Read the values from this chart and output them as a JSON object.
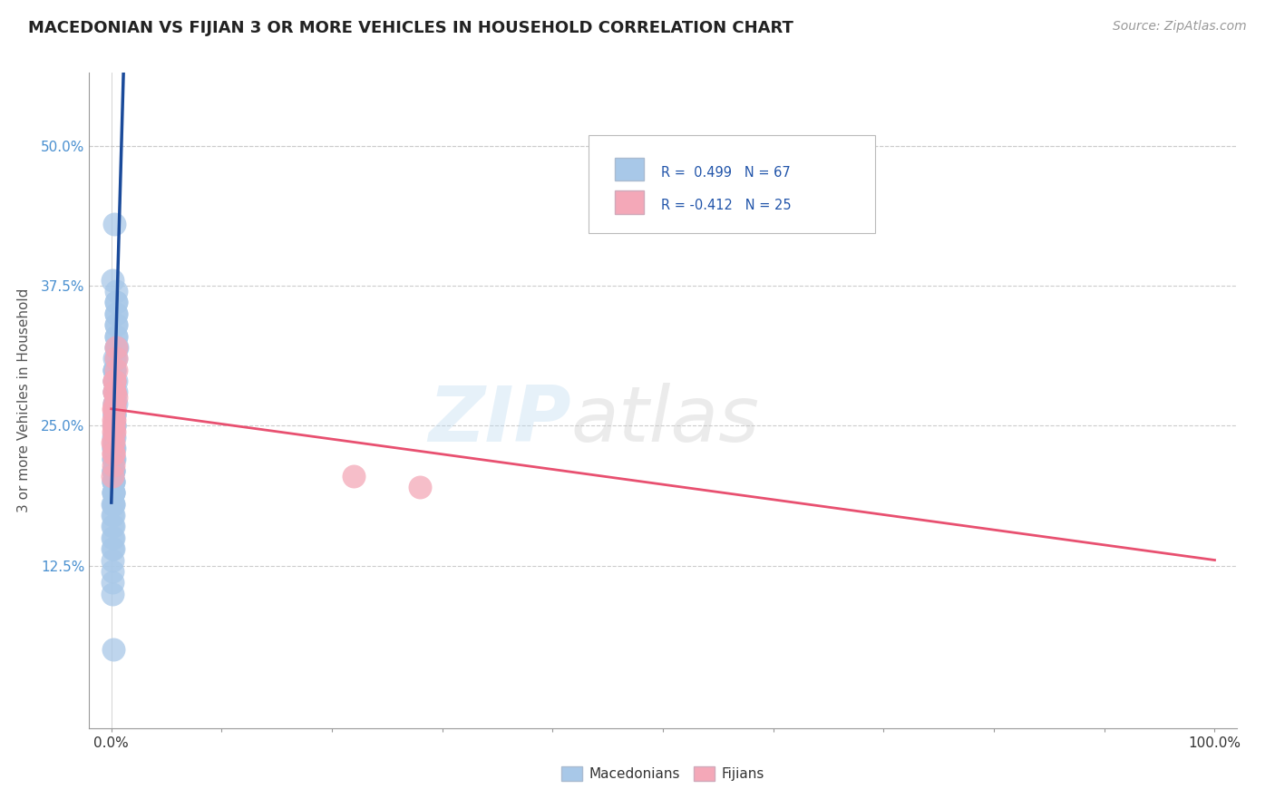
{
  "title": "MACEDONIAN VS FIJIAN 3 OR MORE VEHICLES IN HOUSEHOLD CORRELATION CHART",
  "source": "Source: ZipAtlas.com",
  "ylabel": "3 or more Vehicles in Household",
  "xlim": [
    -0.02,
    1.02
  ],
  "ylim": [
    -0.02,
    0.565
  ],
  "xtick_positions": [
    0.0,
    0.1,
    0.2,
    0.3,
    0.4,
    0.5,
    0.6,
    0.7,
    0.8,
    0.9,
    1.0
  ],
  "xtick_labels": [
    "0.0%",
    "",
    "",
    "",
    "",
    "",
    "",
    "",
    "",
    "",
    "100.0%"
  ],
  "yticks": [
    0.125,
    0.25,
    0.375,
    0.5
  ],
  "ytick_labels": [
    "12.5%",
    "25.0%",
    "37.5%",
    "50.0%"
  ],
  "macedonian_R": 0.499,
  "macedonian_N": 67,
  "fijian_R": -0.412,
  "fijian_N": 25,
  "macedonian_color": "#a8c8e8",
  "fijian_color": "#f4a8b8",
  "macedonian_line_color": "#1a4a9a",
  "fijian_line_color": "#e85070",
  "background_color": "#ffffff",
  "mac_x": [
    0.002,
    0.003,
    0.001,
    0.004,
    0.002,
    0.003,
    0.005,
    0.004,
    0.003,
    0.002,
    0.001,
    0.002,
    0.004,
    0.003,
    0.002,
    0.003,
    0.004,
    0.002,
    0.001,
    0.003,
    0.002,
    0.004,
    0.003,
    0.002,
    0.003,
    0.001,
    0.004,
    0.002,
    0.003,
    0.002,
    0.004,
    0.003,
    0.001,
    0.002,
    0.004,
    0.003,
    0.002,
    0.003,
    0.004,
    0.001,
    0.002,
    0.003,
    0.004,
    0.002,
    0.003,
    0.001,
    0.004,
    0.002,
    0.003,
    0.002,
    0.003,
    0.004,
    0.001,
    0.002,
    0.004,
    0.003,
    0.002,
    0.003,
    0.001,
    0.004,
    0.002,
    0.003,
    0.004,
    0.002,
    0.003,
    0.001,
    0.002
  ],
  "mac_y": [
    0.05,
    0.43,
    0.38,
    0.27,
    0.24,
    0.26,
    0.32,
    0.28,
    0.22,
    0.2,
    0.18,
    0.19,
    0.35,
    0.3,
    0.23,
    0.25,
    0.29,
    0.21,
    0.17,
    0.31,
    0.22,
    0.33,
    0.26,
    0.2,
    0.28,
    0.16,
    0.34,
    0.23,
    0.27,
    0.19,
    0.36,
    0.29,
    0.15,
    0.22,
    0.32,
    0.25,
    0.18,
    0.3,
    0.37,
    0.14,
    0.21,
    0.24,
    0.33,
    0.17,
    0.29,
    0.13,
    0.35,
    0.2,
    0.26,
    0.16,
    0.28,
    0.31,
    0.12,
    0.19,
    0.34,
    0.23,
    0.15,
    0.27,
    0.11,
    0.32,
    0.18,
    0.25,
    0.36,
    0.14,
    0.3,
    0.1,
    0.21
  ],
  "fij_x": [
    0.002,
    0.003,
    0.002,
    0.004,
    0.002,
    0.004,
    0.001,
    0.003,
    0.003,
    0.002,
    0.004,
    0.002,
    0.003,
    0.003,
    0.002,
    0.004,
    0.001,
    0.003,
    0.002,
    0.003,
    0.22,
    0.28,
    0.003,
    0.002,
    0.003
  ],
  "fij_y": [
    0.265,
    0.28,
    0.25,
    0.3,
    0.245,
    0.275,
    0.235,
    0.29,
    0.265,
    0.225,
    0.31,
    0.215,
    0.245,
    0.27,
    0.255,
    0.32,
    0.205,
    0.265,
    0.235,
    0.28,
    0.205,
    0.195,
    0.29,
    0.225,
    0.255
  ],
  "mac_line_x0": 0.0,
  "mac_line_x1": 0.025,
  "mac_line_slope": 35.0,
  "mac_line_intercept": 0.18,
  "fij_line_x0": 0.0,
  "fij_line_x1": 1.0,
  "fij_line_slope": -0.135,
  "fij_line_intercept": 0.265
}
